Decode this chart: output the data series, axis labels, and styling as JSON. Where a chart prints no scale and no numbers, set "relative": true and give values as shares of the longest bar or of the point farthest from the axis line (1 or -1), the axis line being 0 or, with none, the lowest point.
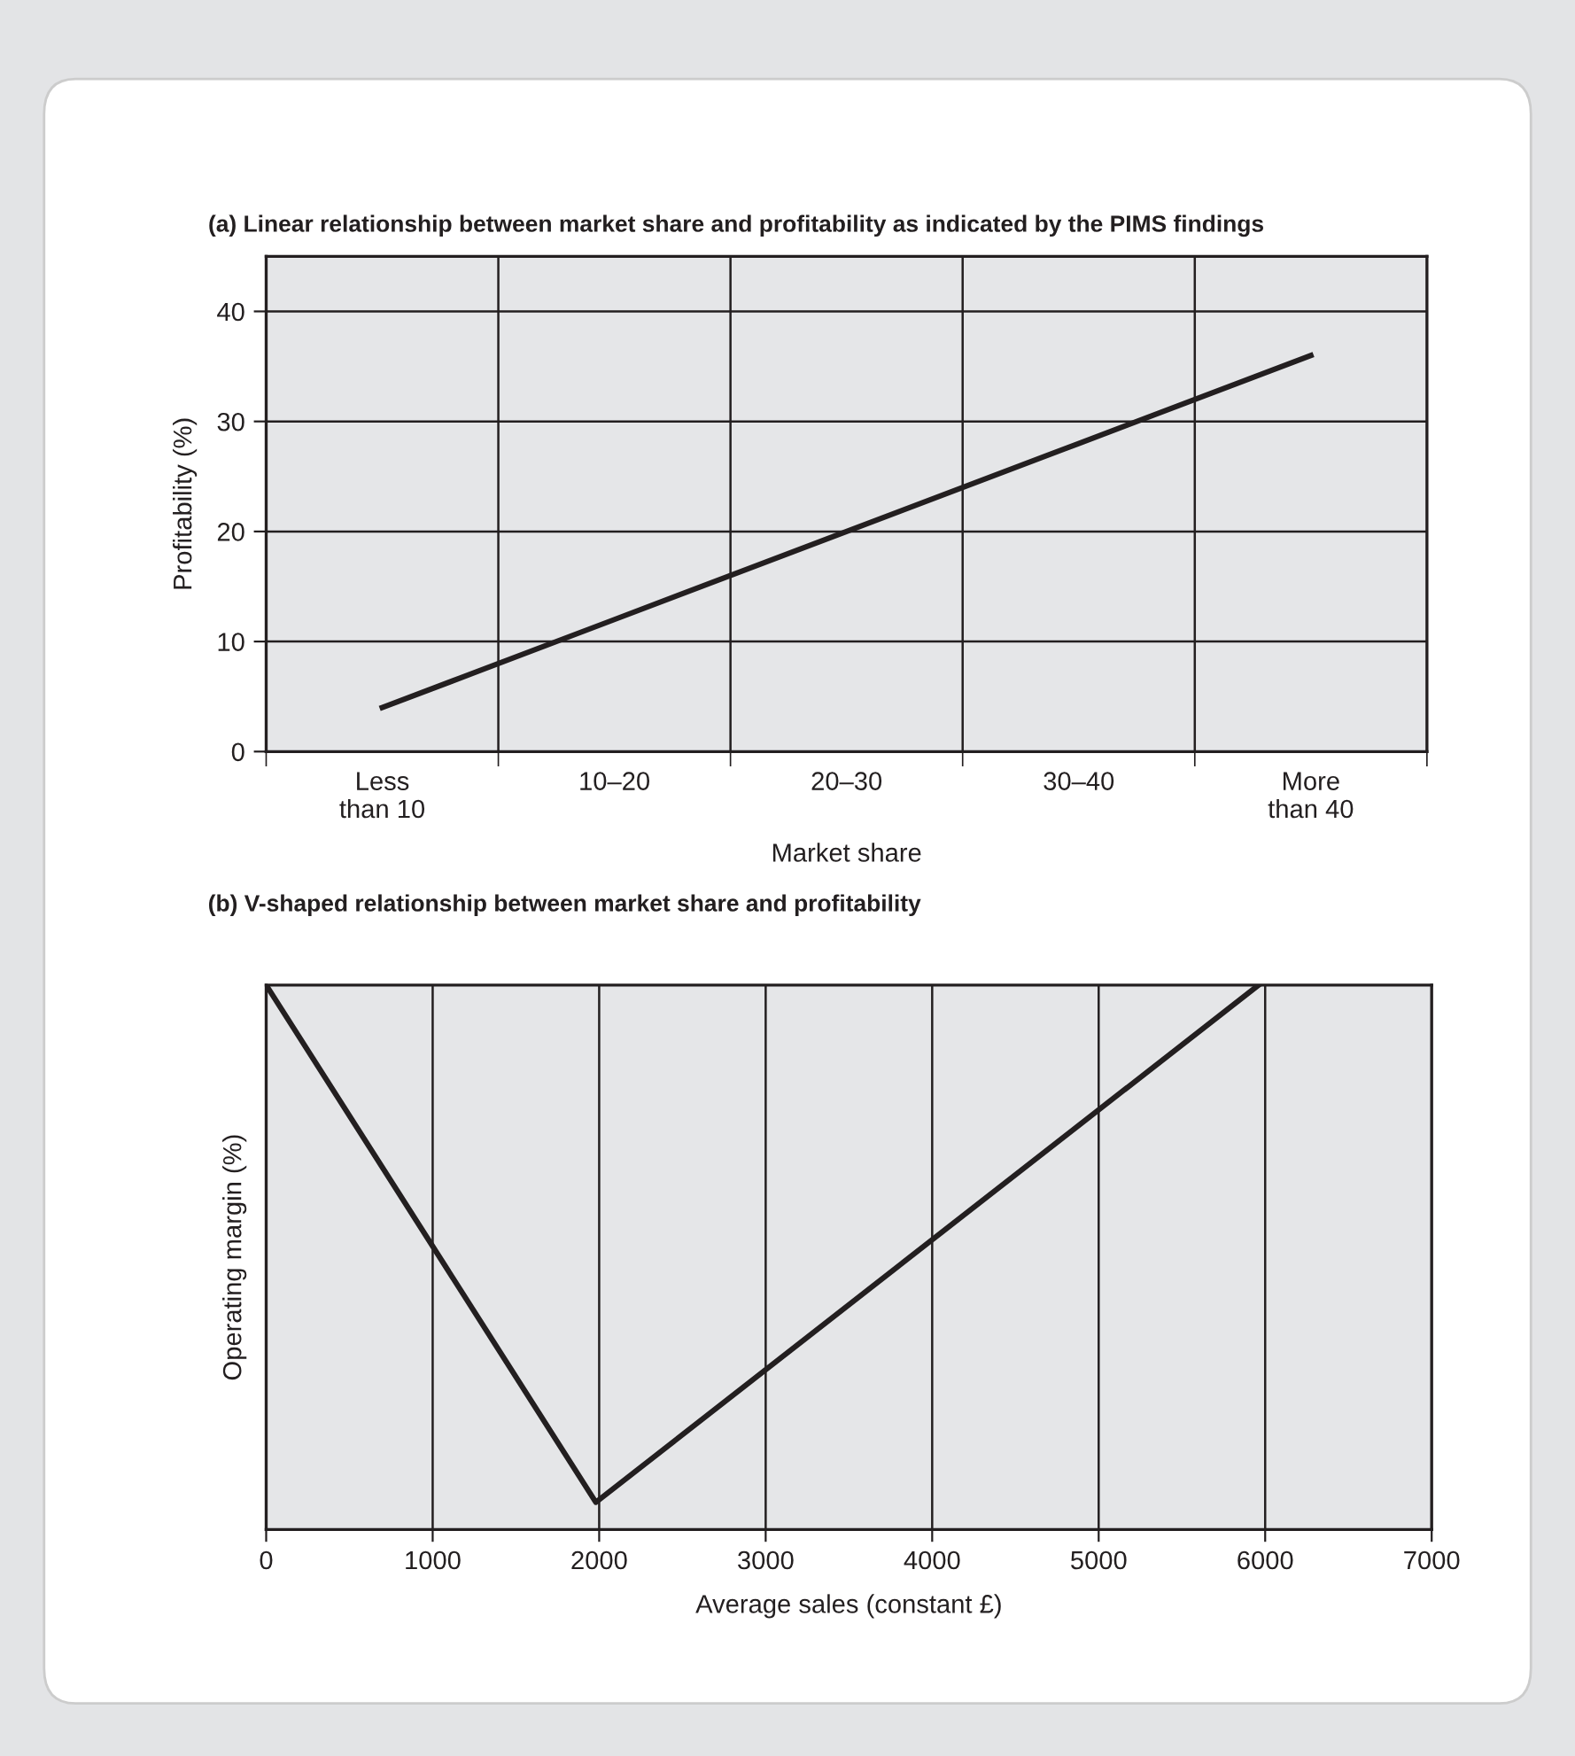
{
  "chart_data": [
    {
      "type": "line",
      "title": "(a) Linear relationship between market share and profitability as indicated by the PIMS findings",
      "xlabel": "Market share",
      "ylabel": "Profitability (%)",
      "categories": [
        "Less\nthan 10",
        "10–20",
        "20–30",
        "30–40",
        "More\nthan 40"
      ],
      "series": [
        {
          "color": "#231f20",
          "values": [
            4,
            12,
            20,
            28,
            36
          ]
        }
      ],
      "ylim": [
        0,
        45
      ],
      "yticks": [
        0,
        10,
        20,
        30,
        40
      ],
      "grid": true,
      "legend": false,
      "marker": "none",
      "line_style": "solid"
    },
    {
      "type": "line",
      "title": "(b) V-shaped relationship between market share and profitability",
      "xlabel": "Average sales (constant £)",
      "ylabel": "Operating margin (%)",
      "relative": true,
      "series": [
        {
          "color": "#231f20",
          "x": [
            0,
            1980,
            5960
          ],
          "values": [
            1,
            0.05,
            1
          ]
        }
      ],
      "xlim": [
        0,
        7000
      ],
      "xticks": [
        0,
        1000,
        2000,
        3000,
        4000,
        5000,
        6000,
        7000
      ],
      "grid": "x",
      "legend": false,
      "marker": "none",
      "line_style": "solid"
    }
  ]
}
